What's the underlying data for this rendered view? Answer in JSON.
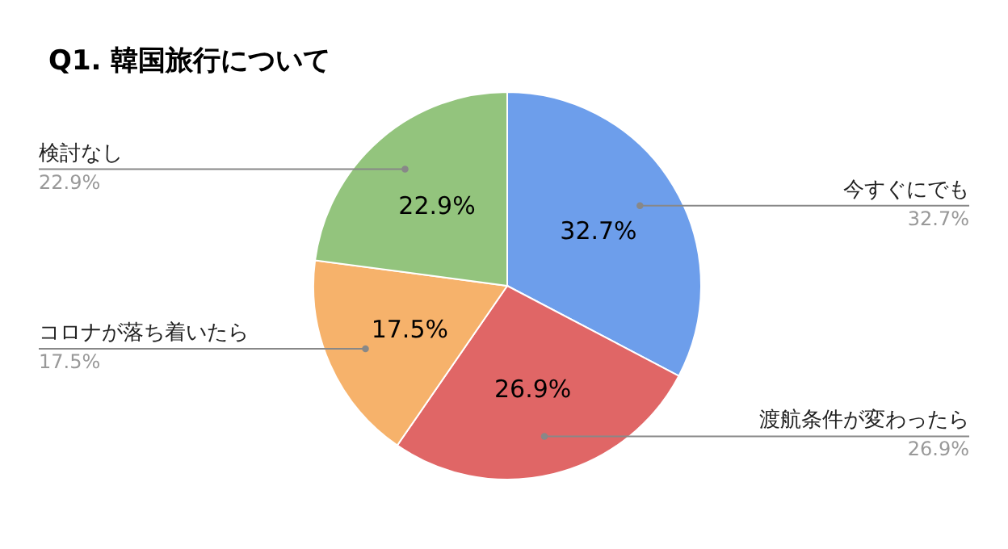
{
  "chart_data": {
    "type": "pie",
    "title": "Q1. 韓国旅行について",
    "categories": [
      "今すぐにでも",
      "渡航条件が変わったら",
      "コロナが落ち着いたら",
      "検討なし"
    ],
    "values": [
      32.7,
      26.9,
      17.5,
      22.9
    ],
    "value_labels": [
      "32.7%",
      "26.9%",
      "17.5%",
      "22.9%"
    ],
    "colors": [
      "#6d9eeb",
      "#e06666",
      "#f6b26b",
      "#93c47d"
    ]
  }
}
